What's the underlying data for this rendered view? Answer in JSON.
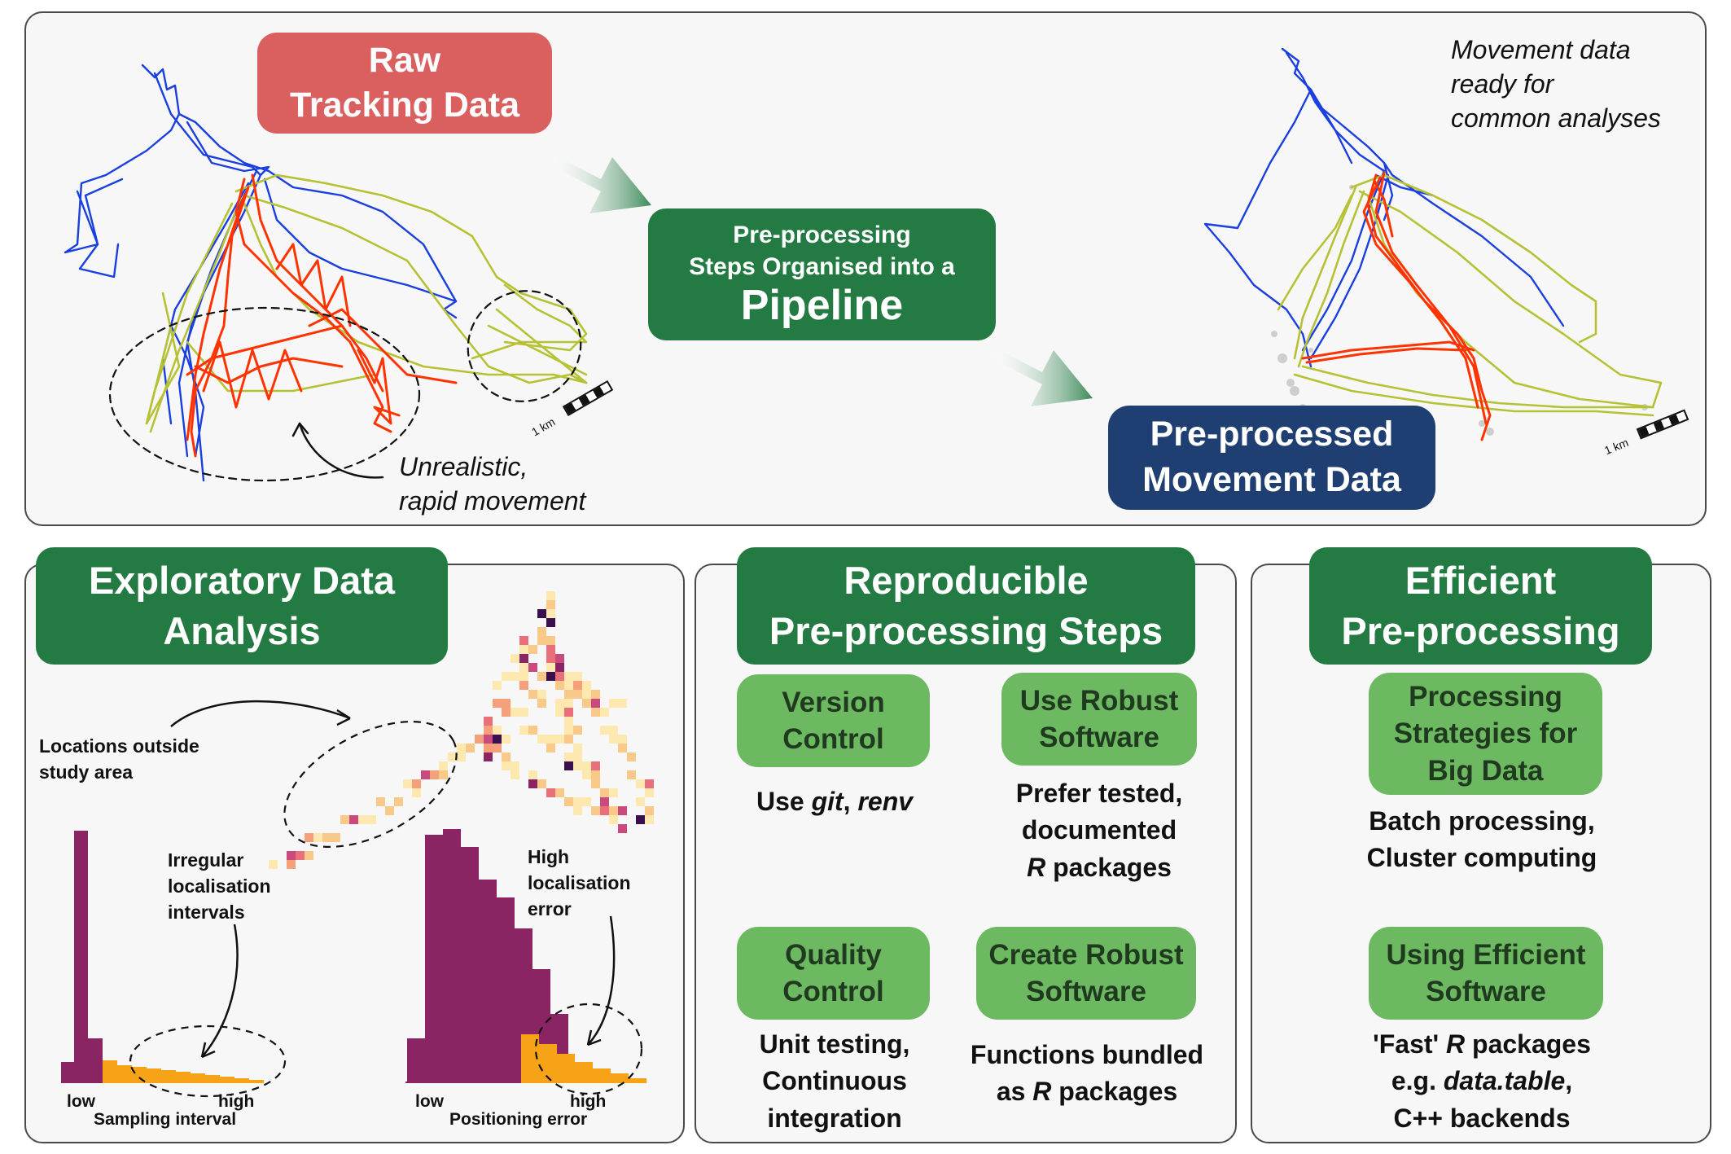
{
  "top": {
    "raw_label": "Raw\nTracking Data",
    "pipeline_small": "Pre-processing\nSteps Organised into a",
    "pipeline_big": "Pipeline",
    "preprocessed_label": "Pre-processed\nMovement Data",
    "ready_note": "Movement data\nready for\ncommon analyses",
    "unrealistic_note": "Unrealistic,\nrapid movement",
    "scale_left": "1 km",
    "scale_right": "1 km"
  },
  "eda": {
    "title": "Exploratory Data\nAnalysis",
    "outside_note": "Locations outside\nstudy area",
    "irregular_note": "Irregular\nlocalisation\nintervals",
    "error_note": "High\nlocalisation\nerror",
    "hist1": {
      "low": "low",
      "high": "high",
      "xlabel": "Sampling interval"
    },
    "hist2": {
      "low": "low",
      "high": "high",
      "xlabel": "Positioning error"
    }
  },
  "reproducible": {
    "title": "Reproducible\nPre-processing Steps",
    "version_control": "Version\nControl",
    "version_text_plain": "Use ",
    "version_text_git": "git",
    "version_text_sep": ", ",
    "version_text_renv": "renv",
    "robust": "Use Robust\nSoftware",
    "robust_text_1": "Prefer tested,\ndocumented",
    "robust_text_R": "R",
    "robust_text_2": " packages",
    "quality": "Quality\nControl",
    "quality_text": "Unit testing,\nContinuous\nintegration",
    "create": "Create Robust\nSoftware",
    "create_text_1": "Functions bundled\nas ",
    "create_text_R": "R",
    "create_text_2": " packages"
  },
  "efficient": {
    "title": "Efficient\nPre-processing",
    "strategies": "Processing\nStrategies for\nBig Data",
    "strategies_text": "Batch processing,\nCluster computing",
    "using": "Using Efficient\nSoftware",
    "using_text_1": "'Fast' ",
    "using_text_R": "R",
    "using_text_2": " packages\ne.g. ",
    "using_text_dt": "data.table",
    "using_text_3": ",\nC++ backends"
  },
  "colors": {
    "raw_box": "#d9605f",
    "dark_green": "#237a42",
    "light_green": "#6db961",
    "navy": "#1f3f72",
    "track_blue": "#1a3fe0",
    "track_red": "#ff3300",
    "track_olive": "#b6c234",
    "hist_purple": "#8b2462",
    "hist_orange": "#f7a318"
  },
  "icons": [
    "arrow-right-gradient",
    "curved-arrow",
    "dashed-ellipse",
    "scale-bar"
  ]
}
